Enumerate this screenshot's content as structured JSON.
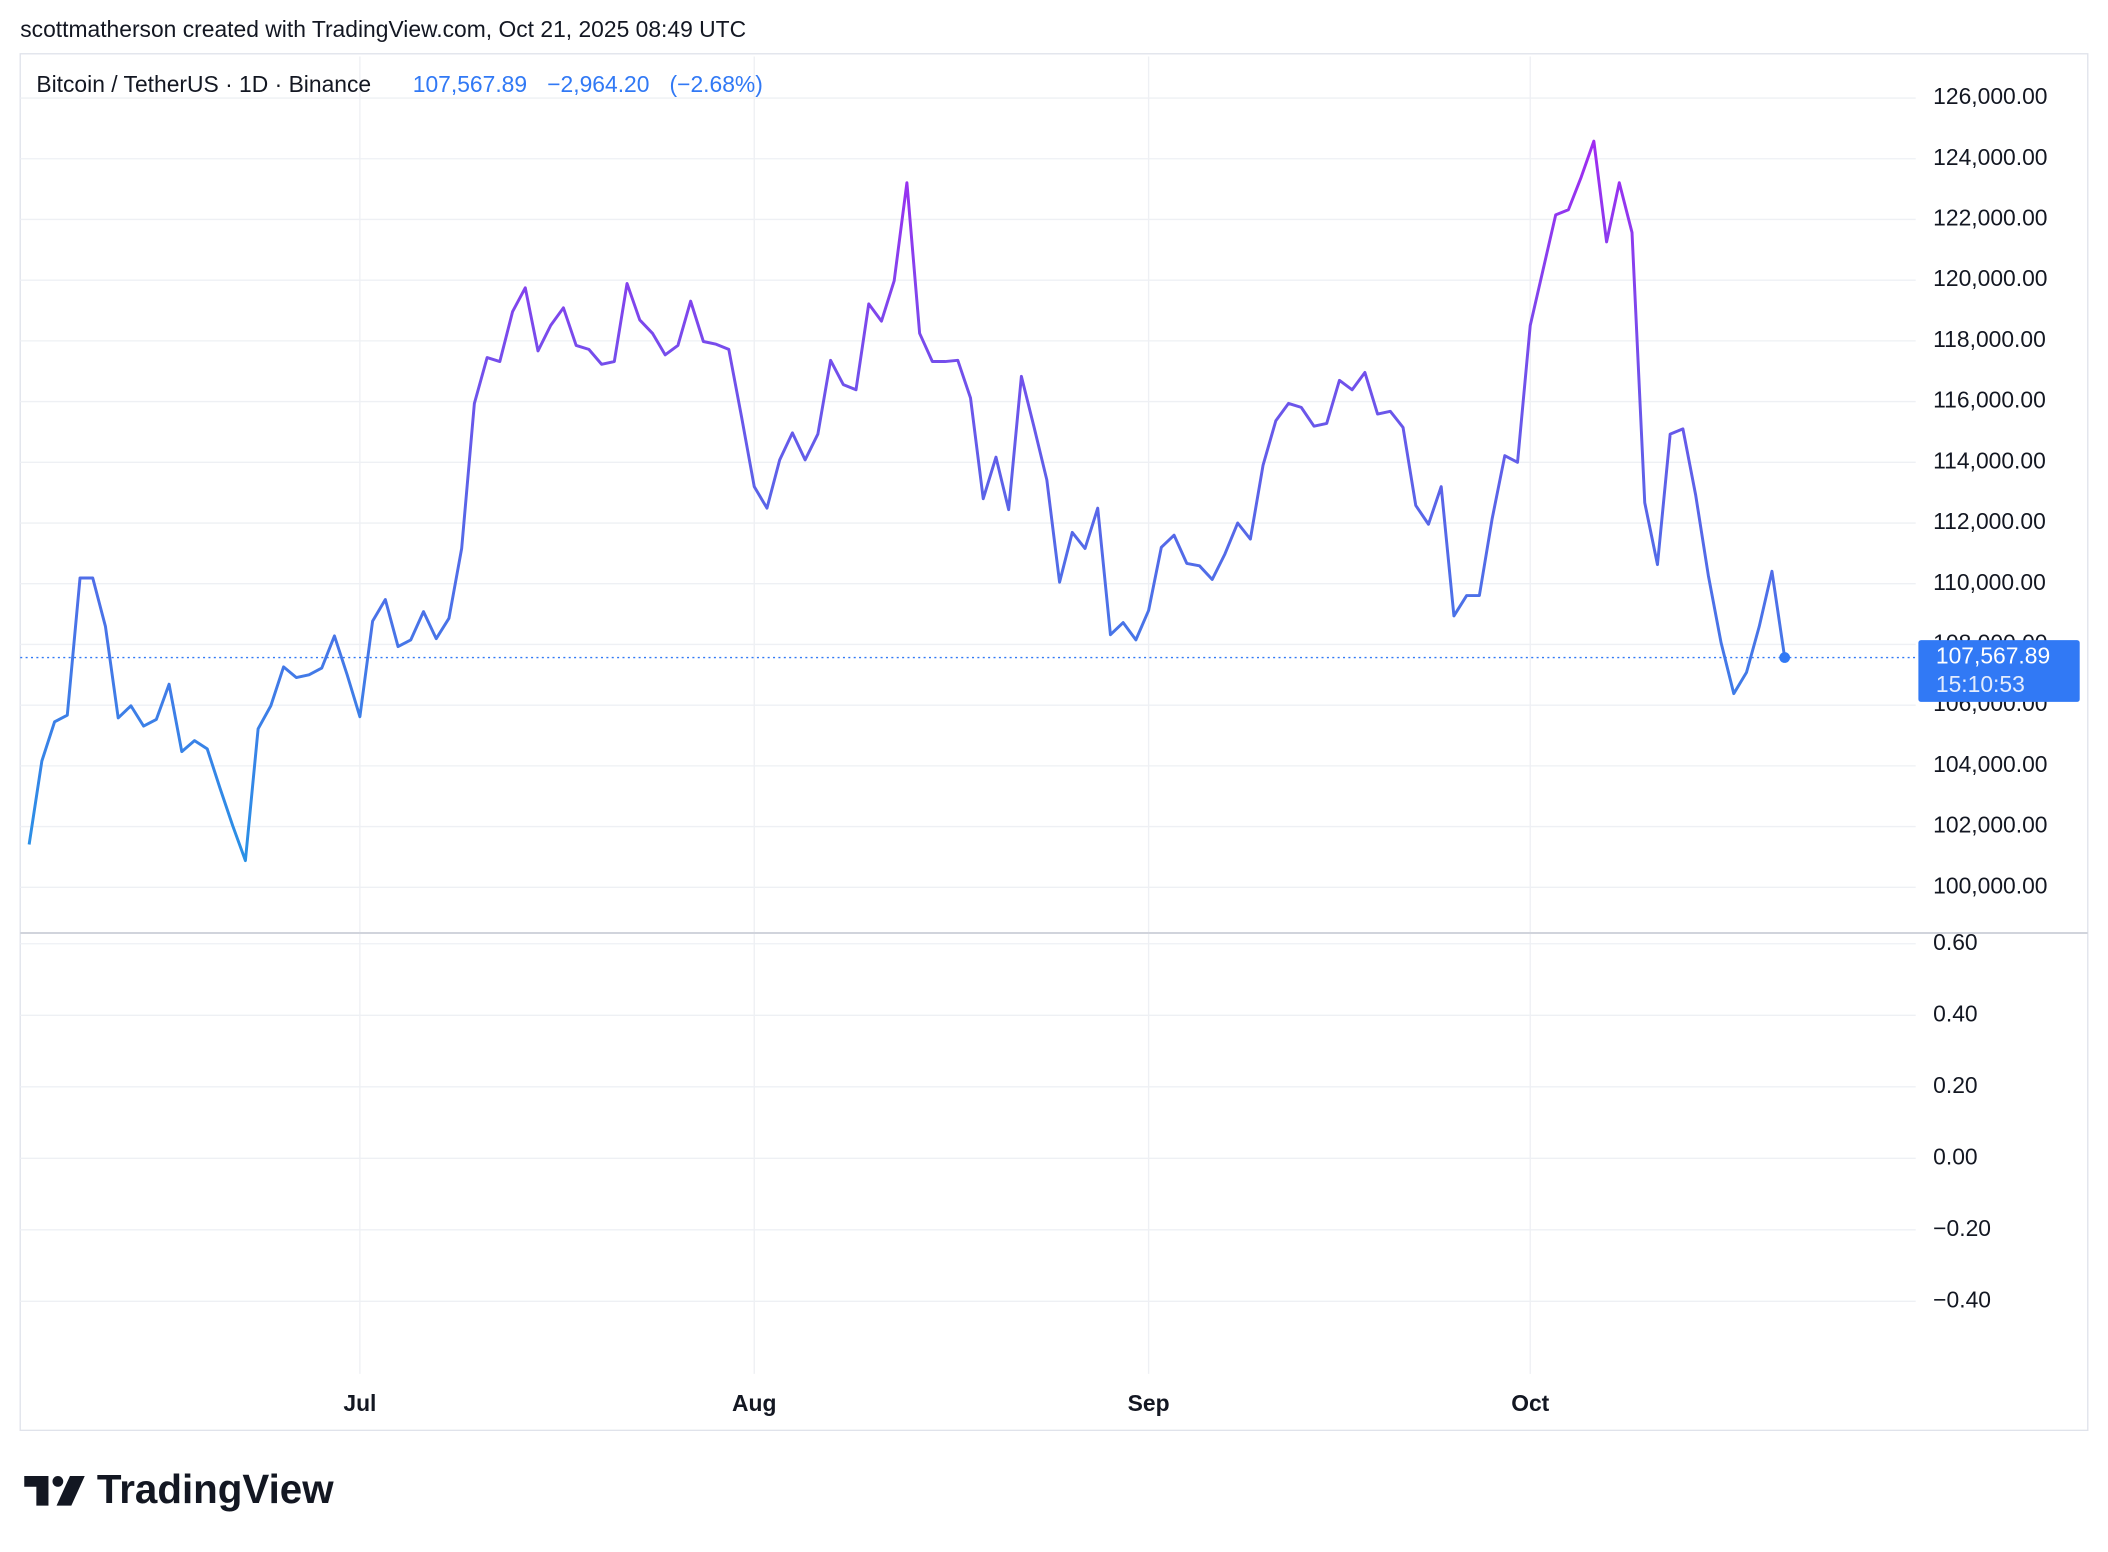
{
  "header": {
    "attribution": "scottmatherson created with TradingView.com, Oct 21, 2025 08:49 UTC"
  },
  "logo": "TradingView",
  "chart_data": [
    {
      "type": "line",
      "symbol": "Bitcoin / TetherUS · 1D · Binance",
      "last_price": {
        "value": 107567.89,
        "label": "107,567.89"
      },
      "change": {
        "value": -2964.2,
        "label": "−2,964.20"
      },
      "change_pct": {
        "value": -2.68,
        "label": "(−2.68%)"
      },
      "countdown": "15:10:53",
      "gradient": [
        "#1f9ae6",
        "#5b63e8",
        "#b01ef3"
      ],
      "label_color": "#3179f5",
      "values": [
        101410,
        104160,
        105450,
        105670,
        110190,
        110190,
        108590,
        105580,
        105980,
        105310,
        105530,
        106690,
        104470,
        104830,
        104560,
        103270,
        102030,
        100880,
        105220,
        105980,
        107260,
        106910,
        107000,
        107220,
        108280,
        107000,
        105620,
        108770,
        109480,
        107930,
        108150,
        109080,
        108190,
        108860,
        111160,
        115940,
        117450,
        117320,
        118960,
        119750,
        117670,
        118510,
        119090,
        117850,
        117720,
        117230,
        117320,
        119890,
        118690,
        118250,
        117540,
        117850,
        119310,
        117980,
        117890,
        117720,
        115500,
        113200,
        112490,
        114080,
        114970,
        114080,
        114930,
        117360,
        116560,
        116390,
        119220,
        118650,
        119980,
        123210,
        118250,
        117320,
        117320,
        117360,
        116120,
        112800,
        114170,
        112440,
        116830,
        115150,
        113420,
        110050,
        111690,
        111160,
        112490,
        108320,
        108720,
        108150,
        109120,
        111200,
        111600,
        110670,
        110590,
        110140,
        110980,
        112000,
        111470,
        113910,
        115370,
        115940,
        115810,
        115190,
        115280,
        116700,
        116390,
        116960,
        115590,
        115680,
        115150,
        112580,
        111960,
        113200,
        108940,
        109610,
        109610,
        112130,
        114220,
        114000,
        118510,
        120330,
        122150,
        122320,
        123390,
        124580,
        121260,
        123210,
        121570,
        112670,
        110630,
        114930,
        115100,
        112930,
        110270,
        108060,
        106380,
        107080,
        108590,
        110410,
        107567.89
      ],
      "xlim": [
        -0.7,
        148.3
      ],
      "xticks": [
        {
          "value": 26,
          "label": "Jul"
        },
        {
          "value": 57,
          "label": "Aug"
        },
        {
          "value": 88,
          "label": "Sep"
        },
        {
          "value": 118,
          "label": "Oct"
        }
      ],
      "ylim": [
        98540,
        127370
      ],
      "yticks": [
        {
          "value": 100000,
          "label": "100,000.00"
        },
        {
          "value": 102000,
          "label": "102,000.00"
        },
        {
          "value": 104000,
          "label": "104,000.00"
        },
        {
          "value": 106000,
          "label": "106,000.00"
        },
        {
          "value": 108000,
          "label": "108,000.00"
        },
        {
          "value": 110000,
          "label": "110,000.00"
        },
        {
          "value": 112000,
          "label": "112,000.00"
        },
        {
          "value": 114000,
          "label": "114,000.00"
        },
        {
          "value": 116000,
          "label": "116,000.00"
        },
        {
          "value": 118000,
          "label": "118,000.00"
        },
        {
          "value": 120000,
          "label": "120,000.00"
        },
        {
          "value": 122000,
          "label": "122,000.00"
        },
        {
          "value": 124000,
          "label": "124,000.00"
        },
        {
          "value": 126000,
          "label": "126,000.00"
        }
      ],
      "grid": true
    },
    {
      "type": "line",
      "ylim": [
        -0.603,
        0.634
      ],
      "yticks": [
        {
          "value": 0.6,
          "label": "0.60"
        },
        {
          "value": 0.4,
          "label": "0.40"
        },
        {
          "value": 0.2,
          "label": "0.20"
        },
        {
          "value": 0,
          "label": "0.00"
        },
        {
          "value": -0.2,
          "label": "−0.20"
        },
        {
          "value": -0.4,
          "label": "−0.40"
        }
      ],
      "grid": true
    }
  ]
}
